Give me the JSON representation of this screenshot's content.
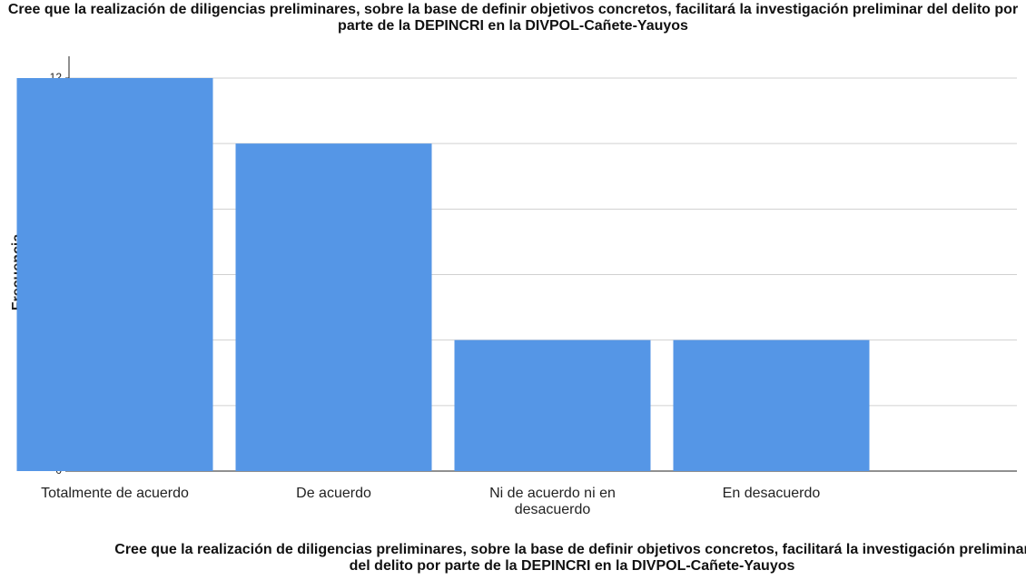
{
  "chart_data": {
    "type": "bar",
    "title": "Cree que la realización de diligencias preliminares, sobre la base de definir objetivos concretos, facilitará la investigación preliminar del delito por parte de la DEPINCRI en la DIVPOL-Cañete-Yauyos",
    "x_label": "Cree que la realización de diligencias preliminares, sobre la base de definir objetivos concretos, facilitará la investigación preliminar del delito por parte de la DEPINCRI en la DIVPOL-Cañete-Yauyos",
    "y_label": "Frecuencia",
    "categories": [
      "Totalmente de acuerdo",
      "De acuerdo",
      "Ni de acuerdo ni en desacuerdo",
      "En desacuerdo"
    ],
    "values": [
      12,
      10,
      4,
      4
    ],
    "color": "#5596e6",
    "ylim": [
      0,
      12
    ],
    "yticks": [
      0,
      2,
      4,
      6,
      8,
      10,
      12
    ],
    "grid": true
  }
}
